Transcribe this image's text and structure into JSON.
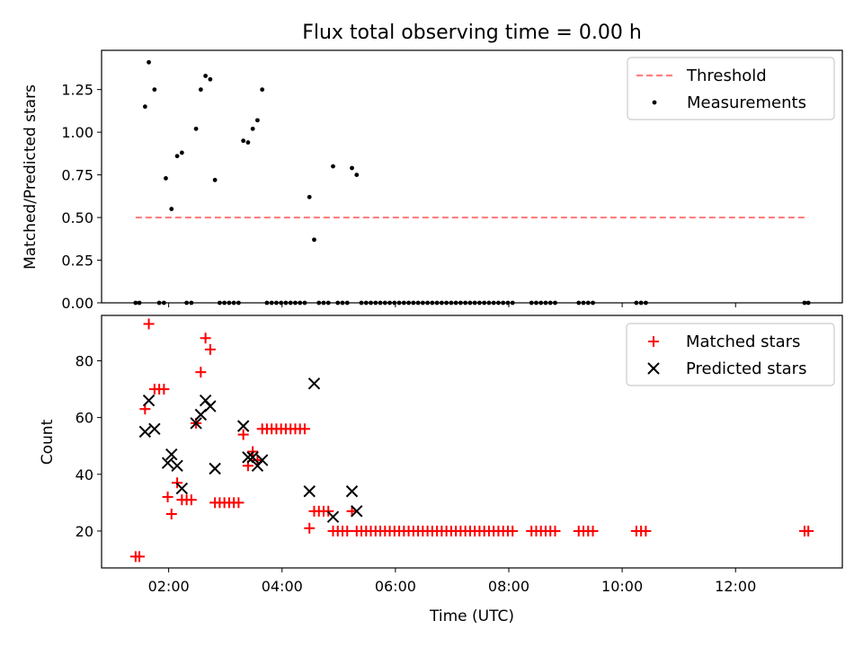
{
  "figure": {
    "title": "Flux total observing time = 0.00 h"
  },
  "chart_data": [
    {
      "type": "scatter",
      "title": "Flux total observing time = 0.00 h",
      "xlabel": "",
      "ylabel": "Matched/Predicted stars",
      "xlim": [
        "00:49",
        "13:53"
      ],
      "ylim": [
        0,
        1.48
      ],
      "yticks": [
        "0.00",
        "0.25",
        "0.50",
        "0.75",
        "1.00",
        "1.25"
      ],
      "grid": false,
      "legend_position": "top-right",
      "threshold": {
        "name": "Threshold",
        "color": "#ff7f7f",
        "style": "dashed",
        "y": 0.5,
        "x_start": "01:25",
        "x_end": "13:17"
      },
      "series": [
        {
          "name": "Measurements",
          "color": "#000000",
          "marker": "dot",
          "x": [
            "01:25",
            "01:29",
            "01:35",
            "01:39",
            "01:45",
            "01:50",
            "01:55",
            "01:57",
            "02:03",
            "02:09",
            "02:14",
            "02:19",
            "02:24",
            "02:29",
            "02:34",
            "02:39",
            "02:44",
            "02:49",
            "02:54",
            "02:59",
            "03:04",
            "03:09",
            "03:14",
            "03:19",
            "03:24",
            "03:29",
            "03:34",
            "03:39",
            "03:44",
            "03:49",
            "03:54",
            "03:59",
            "04:04",
            "04:09",
            "04:14",
            "04:19",
            "04:24",
            "04:29",
            "04:34",
            "04:39",
            "04:44",
            "04:49",
            "04:54",
            "04:59",
            "05:04",
            "05:09",
            "05:14",
            "05:19",
            "05:24",
            "05:29",
            "05:34",
            "05:39",
            "05:44",
            "05:49",
            "05:54",
            "05:59",
            "06:04",
            "06:09",
            "06:14",
            "06:19",
            "06:24",
            "06:29",
            "06:34",
            "06:39",
            "06:44",
            "06:49",
            "06:54",
            "06:59",
            "07:04",
            "07:09",
            "07:14",
            "07:19",
            "07:24",
            "07:29",
            "07:34",
            "07:39",
            "07:44",
            "07:49",
            "07:54",
            "07:59",
            "08:04",
            "08:24",
            "08:29",
            "08:34",
            "08:39",
            "08:44",
            "08:49",
            "09:14",
            "09:19",
            "09:24",
            "09:29",
            "10:15",
            "10:20",
            "10:25",
            "13:13",
            "13:17"
          ],
          "y": [
            0,
            0,
            1.15,
            1.41,
            1.25,
            0,
            0,
            0.73,
            0.55,
            0.86,
            0.88,
            0,
            0,
            1.02,
            1.25,
            1.33,
            1.31,
            0.72,
            0,
            0,
            0,
            0,
            0,
            0.95,
            0.94,
            1.02,
            1.07,
            1.25,
            0,
            0,
            0,
            0,
            0,
            0,
            0,
            0,
            0,
            0.62,
            0.37,
            0,
            0,
            0,
            0.8,
            0,
            0,
            0,
            0.79,
            0.75,
            0,
            0,
            0,
            0,
            0,
            0,
            0,
            0,
            0,
            0,
            0,
            0,
            0,
            0,
            0,
            0,
            0,
            0,
            0,
            0,
            0,
            0,
            0,
            0,
            0,
            0,
            0,
            0,
            0,
            0,
            0,
            0,
            0,
            0,
            0,
            0,
            0,
            0,
            0,
            0,
            0,
            0,
            0,
            0,
            0,
            0,
            0,
            0
          ]
        }
      ]
    },
    {
      "type": "scatter",
      "title": "",
      "xlabel": "Time (UTC)",
      "ylabel": "Count",
      "xlim": [
        "00:49",
        "13:53"
      ],
      "xticks": [
        "02:00",
        "04:00",
        "06:00",
        "08:00",
        "10:00",
        "12:00"
      ],
      "ylim": [
        7,
        96
      ],
      "yticks": [
        "20",
        "40",
        "60",
        "80"
      ],
      "grid": false,
      "legend_position": "top-right",
      "series": [
        {
          "name": "Matched stars",
          "color": "#ff0000",
          "marker": "plus",
          "x": [
            "01:25",
            "01:29",
            "01:35",
            "01:39",
            "01:45",
            "01:50",
            "01:55",
            "01:59",
            "02:03",
            "02:09",
            "02:14",
            "02:19",
            "02:24",
            "02:29",
            "02:34",
            "02:39",
            "02:44",
            "02:49",
            "02:54",
            "02:59",
            "03:04",
            "03:09",
            "03:14",
            "03:19",
            "03:24",
            "03:29",
            "03:34",
            "03:39",
            "03:44",
            "03:49",
            "03:54",
            "03:59",
            "04:04",
            "04:09",
            "04:14",
            "04:19",
            "04:24",
            "04:29",
            "04:34",
            "04:39",
            "04:44",
            "04:49",
            "04:54",
            "04:59",
            "05:04",
            "05:09",
            "05:14",
            "05:19",
            "05:24",
            "05:29",
            "05:34",
            "05:39",
            "05:44",
            "05:49",
            "05:54",
            "05:59",
            "06:04",
            "06:09",
            "06:14",
            "06:19",
            "06:24",
            "06:29",
            "06:34",
            "06:39",
            "06:44",
            "06:49",
            "06:54",
            "06:59",
            "07:04",
            "07:09",
            "07:14",
            "07:19",
            "07:24",
            "07:29",
            "07:34",
            "07:39",
            "07:44",
            "07:49",
            "07:54",
            "07:59",
            "08:04",
            "08:24",
            "08:29",
            "08:34",
            "08:39",
            "08:44",
            "08:49",
            "09:14",
            "09:19",
            "09:24",
            "09:29",
            "10:15",
            "10:20",
            "10:25",
            "13:13",
            "13:17"
          ],
          "y": [
            11,
            11,
            63,
            93,
            70,
            70,
            70,
            32,
            26,
            37,
            31,
            31,
            31,
            58,
            76,
            88,
            84,
            30,
            30,
            30,
            30,
            30,
            30,
            54,
            43,
            48,
            45,
            56,
            56,
            56,
            56,
            56,
            56,
            56,
            56,
            56,
            56,
            21,
            27,
            27,
            27,
            27,
            20,
            20,
            20,
            20,
            27,
            20,
            20,
            20,
            20,
            20,
            20,
            20,
            20,
            20,
            20,
            20,
            20,
            20,
            20,
            20,
            20,
            20,
            20,
            20,
            20,
            20,
            20,
            20,
            20,
            20,
            20,
            20,
            20,
            20,
            20,
            20,
            20,
            20,
            20,
            20,
            20,
            20,
            20,
            20,
            20,
            20,
            20,
            20,
            20,
            20,
            20,
            20,
            20,
            20
          ]
        },
        {
          "name": "Predicted stars",
          "color": "#000000",
          "marker": "x",
          "x": [
            "01:35",
            "01:39",
            "01:45",
            "01:59",
            "02:03",
            "02:09",
            "02:14",
            "02:29",
            "02:34",
            "02:39",
            "02:44",
            "02:49",
            "03:19",
            "03:24",
            "03:29",
            "03:34",
            "03:39",
            "04:29",
            "04:34",
            "04:54",
            "05:14",
            "05:19"
          ],
          "y": [
            55,
            66,
            56,
            44,
            47,
            43,
            35,
            58,
            61,
            66,
            64,
            42,
            57,
            46,
            46,
            43,
            45,
            34,
            72,
            25,
            34,
            27
          ]
        }
      ]
    }
  ]
}
